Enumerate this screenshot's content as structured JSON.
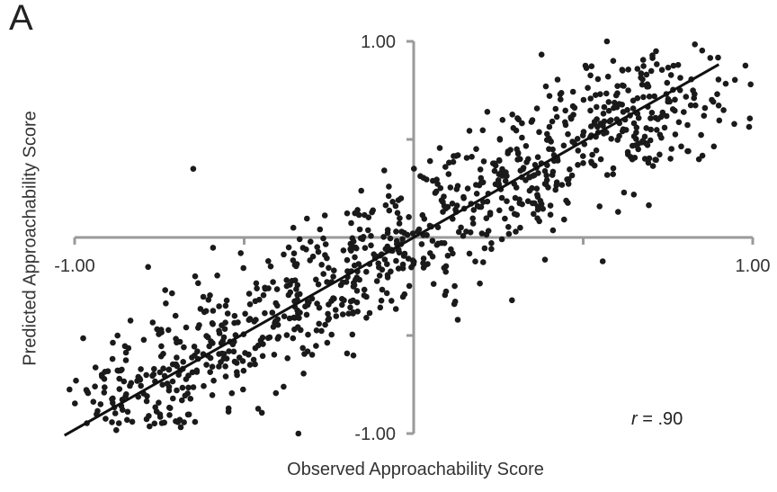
{
  "panel_label": "A",
  "chart_data": {
    "type": "scatter",
    "xlabel": "Observed Approachability Score",
    "ylabel": "Predicted Approachability Score",
    "xlim": [
      -1.0,
      1.0
    ],
    "ylim": [
      -1.0,
      1.0
    ],
    "x_tick_labels": [
      "-1.00",
      "1.00"
    ],
    "y_tick_labels": [
      "1.00",
      "-1.00"
    ],
    "annotation": {
      "r_symbol": "r",
      "r_value": " = .90"
    },
    "grid": false,
    "fit_line": {
      "intercept": 0.0,
      "slope": 0.98
    },
    "points_note_count": 1000,
    "series": [
      {
        "values": [
          [
            0.57,
            1.0
          ],
          [
            0.39,
            0.77
          ],
          [
            0.66,
            0.86
          ],
          [
            -0.65,
            0.35
          ],
          [
            -0.51,
            -0.08
          ],
          [
            0.64,
            0.41
          ],
          [
            0.74,
            0.56
          ],
          [
            0.81,
            0.44
          ],
          [
            -0.87,
            -0.68
          ],
          [
            -0.85,
            -0.81
          ],
          [
            -0.83,
            -0.94
          ],
          [
            -0.69,
            -0.93
          ],
          [
            -0.34,
            -1.0
          ],
          [
            0.12,
            -0.34
          ],
          [
            0.29,
            -0.32
          ],
          [
            -0.92,
            -0.7
          ],
          [
            -0.94,
            -0.76
          ],
          [
            0.66,
            0.71
          ],
          [
            0.71,
            0.72
          ],
          [
            0.78,
            0.88
          ]
        ]
      }
    ]
  }
}
